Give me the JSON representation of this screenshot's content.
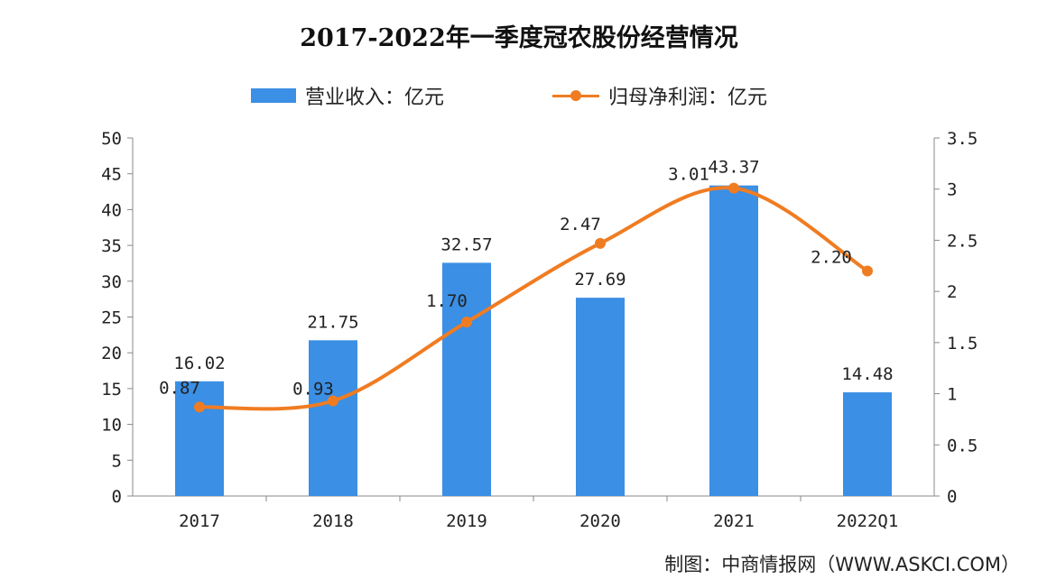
{
  "chart_data": {
    "type": "bar+line",
    "title": "2017-2022年一季度冠农股份经营情况",
    "categories": [
      "2017",
      "2018",
      "2019",
      "2020",
      "2021",
      "2022Q1"
    ],
    "series": [
      {
        "name": "营业收入：亿元",
        "type": "bar",
        "axis": "left",
        "values": [
          16.02,
          21.75,
          32.57,
          27.69,
          43.37,
          14.48
        ],
        "labels": [
          "16.02",
          "21.75",
          "32.57",
          "27.69",
          "43.37",
          "14.48"
        ],
        "color": "#3b8fe4"
      },
      {
        "name": "归母净利润：亿元",
        "type": "line",
        "axis": "right",
        "values": [
          0.87,
          0.93,
          1.7,
          2.47,
          3.01,
          2.2
        ],
        "labels": [
          "0.87",
          "0.93",
          "1.70",
          "2.47",
          "3.01",
          "2.20"
        ],
        "color": "#f07c22"
      }
    ],
    "y_left": {
      "range": [
        0,
        50
      ],
      "ticks": [
        "0",
        "5",
        "10",
        "15",
        "20",
        "25",
        "30",
        "35",
        "40",
        "45",
        "50"
      ]
    },
    "y_right": {
      "range": [
        0,
        3.5
      ],
      "ticks": [
        "0",
        "0.5",
        "1",
        "1.5",
        "2",
        "2.5",
        "3",
        "3.5"
      ]
    },
    "legend": "top-center",
    "grid": false
  },
  "footer": "制图：中商情报网（WWW.ASKCI.COM）"
}
